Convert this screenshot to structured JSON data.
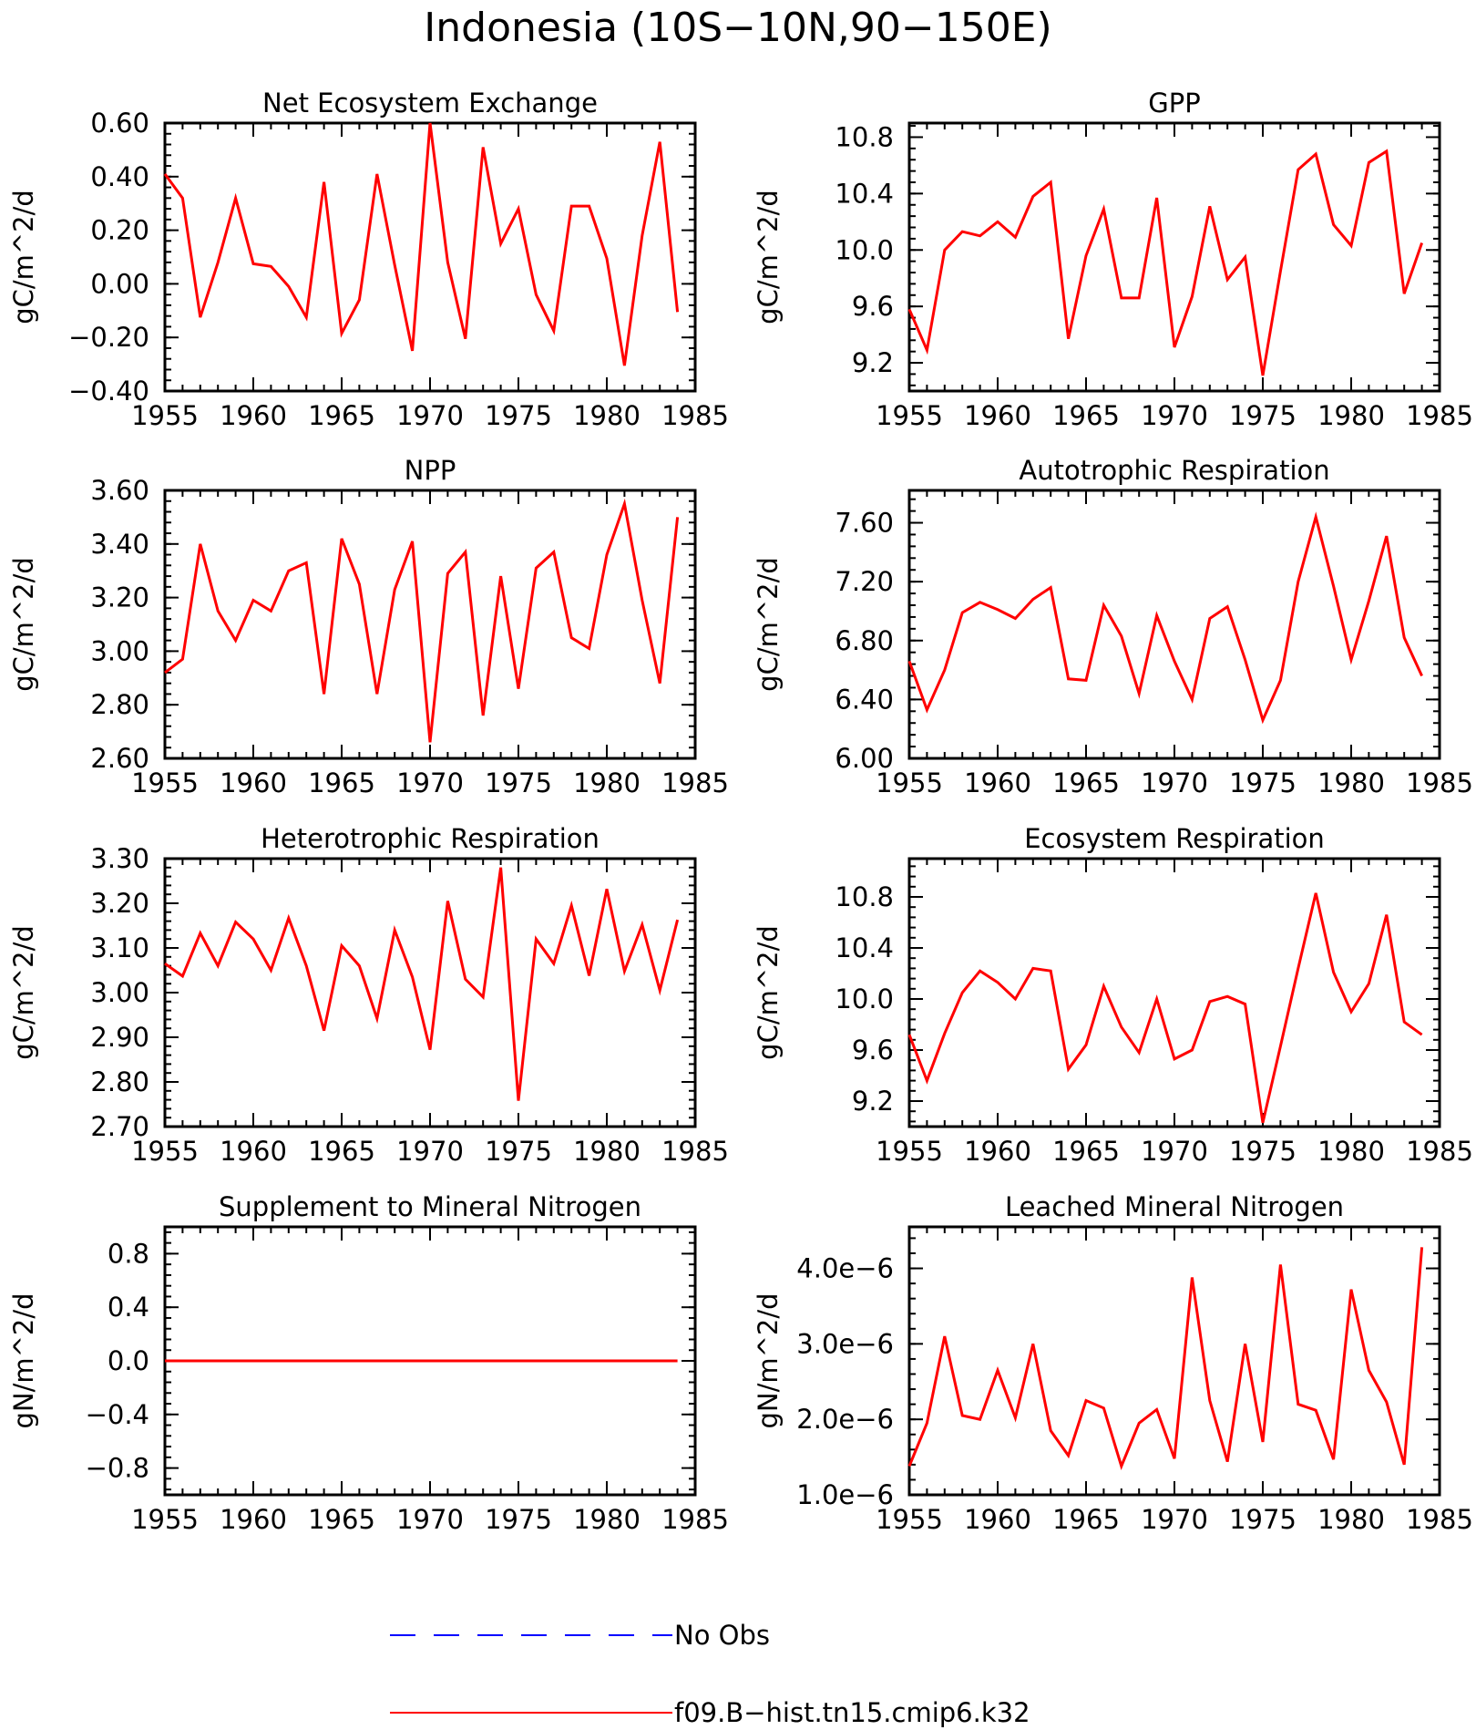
{
  "title": "Indonesia (10S−10N,90−150E)",
  "legend": [
    {
      "label": "No Obs",
      "color": "#0000ff",
      "style": "dashed"
    },
    {
      "label": "f09.B−hist.tn15.cmip6.k32",
      "color": "#ff0000",
      "style": "solid"
    }
  ],
  "chart_data": [
    {
      "type": "line",
      "title": "Net Ecosystem Exchange",
      "ylabel": "gC/m^2/d",
      "xlim": [
        1955,
        1985
      ],
      "ylim": [
        -0.4,
        0.6
      ],
      "yticks": [
        -0.4,
        -0.2,
        0.0,
        0.2,
        0.4,
        0.6
      ],
      "yticklabels": [
        "−0.40",
        "−0.20",
        "0.00",
        "0.20",
        "0.40",
        "0.60"
      ],
      "xticks": [
        1955,
        1960,
        1965,
        1970,
        1975,
        1980,
        1985
      ],
      "xticklabels": [
        "1955",
        "1960",
        "1965",
        "1970",
        "1975",
        "1980",
        "1985"
      ],
      "series": [
        {
          "color": "#ff0000",
          "x0": 1955,
          "values": [
            0.41,
            0.32,
            -0.125,
            0.08,
            0.32,
            0.075,
            0.065,
            -0.01,
            -0.125,
            0.38,
            -0.185,
            -0.06,
            0.41,
            0.07,
            -0.25,
            0.6,
            0.08,
            -0.205,
            0.51,
            0.15,
            0.28,
            -0.04,
            -0.175,
            0.29,
            0.29,
            0.095,
            -0.305,
            0.18,
            0.53,
            -0.105
          ]
        }
      ]
    },
    {
      "type": "line",
      "title": "GPP",
      "ylabel": "gC/m^2/d",
      "xlim": [
        1955,
        1985
      ],
      "ylim": [
        9.0,
        10.9
      ],
      "yticks": [
        9.2,
        9.6,
        10.0,
        10.4,
        10.8
      ],
      "yticklabels": [
        "9.2",
        "9.6",
        "10.0",
        "10.4",
        "10.8"
      ],
      "xticks": [
        1955,
        1960,
        1965,
        1970,
        1975,
        1980,
        1985
      ],
      "xticklabels": [
        "1955",
        "1960",
        "1965",
        "1970",
        "1975",
        "1980",
        "1985"
      ],
      "series": [
        {
          "color": "#ff0000",
          "x0": 1955,
          "values": [
            9.58,
            9.29,
            10.0,
            10.13,
            10.1,
            10.2,
            10.09,
            10.38,
            10.48,
            9.37,
            9.96,
            10.29,
            9.66,
            9.66,
            10.37,
            9.31,
            9.67,
            10.31,
            9.79,
            9.95,
            9.11,
            9.85,
            10.57,
            10.68,
            10.18,
            10.03,
            10.62,
            10.7,
            9.69,
            10.05
          ]
        }
      ]
    },
    {
      "type": "line",
      "title": "NPP",
      "ylabel": "gC/m^2/d",
      "xlim": [
        1955,
        1985
      ],
      "ylim": [
        2.6,
        3.6
      ],
      "yticks": [
        2.6,
        2.8,
        3.0,
        3.2,
        3.4,
        3.6
      ],
      "yticklabels": [
        "2.60",
        "2.80",
        "3.00",
        "3.20",
        "3.40",
        "3.60"
      ],
      "xticks": [
        1955,
        1960,
        1965,
        1970,
        1975,
        1980,
        1985
      ],
      "xticklabels": [
        "1955",
        "1960",
        "1965",
        "1970",
        "1975",
        "1980",
        "1985"
      ],
      "series": [
        {
          "color": "#ff0000",
          "x0": 1955,
          "values": [
            2.92,
            2.97,
            3.4,
            3.15,
            3.04,
            3.19,
            3.15,
            3.3,
            3.33,
            2.84,
            3.42,
            3.25,
            2.84,
            3.23,
            3.41,
            2.66,
            3.29,
            3.37,
            2.76,
            3.28,
            2.86,
            3.31,
            3.37,
            3.05,
            3.01,
            3.36,
            3.55,
            3.19,
            2.88,
            3.5
          ]
        }
      ]
    },
    {
      "type": "line",
      "title": "Autotrophic Respiration",
      "ylabel": "gC/m^2/d",
      "xlim": [
        1955,
        1985
      ],
      "ylim": [
        6.0,
        7.82
      ],
      "yticks": [
        6.0,
        6.4,
        6.8,
        7.2,
        7.6
      ],
      "yticklabels": [
        "6.00",
        "6.40",
        "6.80",
        "7.20",
        "7.60"
      ],
      "xticks": [
        1955,
        1960,
        1965,
        1970,
        1975,
        1980,
        1985
      ],
      "xticklabels": [
        "1955",
        "1960",
        "1965",
        "1970",
        "1975",
        "1980",
        "1985"
      ],
      "series": [
        {
          "color": "#ff0000",
          "x0": 1955,
          "values": [
            6.66,
            6.33,
            6.6,
            6.99,
            7.06,
            7.01,
            6.95,
            7.08,
            7.16,
            6.54,
            6.53,
            7.04,
            6.83,
            6.44,
            6.97,
            6.66,
            6.4,
            6.95,
            7.03,
            6.67,
            6.26,
            6.53,
            7.2,
            7.64,
            7.17,
            6.67,
            7.07,
            7.51,
            6.82,
            6.56
          ]
        }
      ]
    },
    {
      "type": "line",
      "title": "Heterotrophic Respiration",
      "ylabel": "gC/m^2/d",
      "xlim": [
        1955,
        1985
      ],
      "ylim": [
        2.7,
        3.3
      ],
      "yticks": [
        2.7,
        2.8,
        2.9,
        3.0,
        3.1,
        3.2,
        3.3
      ],
      "yticklabels": [
        "2.70",
        "2.80",
        "2.90",
        "3.00",
        "3.10",
        "3.20",
        "3.30"
      ],
      "xticks": [
        1955,
        1960,
        1965,
        1970,
        1975,
        1980,
        1985
      ],
      "xticklabels": [
        "1955",
        "1960",
        "1965",
        "1970",
        "1975",
        "1980",
        "1985"
      ],
      "series": [
        {
          "color": "#ff0000",
          "x0": 1955,
          "values": [
            3.065,
            3.037,
            3.133,
            3.06,
            3.158,
            3.12,
            3.05,
            3.167,
            3.06,
            2.915,
            3.105,
            3.06,
            2.942,
            3.14,
            3.035,
            2.872,
            3.205,
            3.03,
            2.99,
            3.28,
            2.758,
            3.12,
            3.065,
            3.195,
            3.038,
            3.232,
            3.048,
            3.152,
            3.005,
            3.163
          ]
        }
      ]
    },
    {
      "type": "line",
      "title": "Ecosystem Respiration",
      "ylabel": "gC/m^2/d",
      "xlim": [
        1955,
        1985
      ],
      "ylim": [
        9.0,
        11.1
      ],
      "yticks": [
        9.2,
        9.6,
        10.0,
        10.4,
        10.8
      ],
      "yticklabels": [
        "9.2",
        "9.6",
        "10.0",
        "10.4",
        "10.8"
      ],
      "xticks": [
        1955,
        1960,
        1965,
        1970,
        1975,
        1980,
        1985
      ],
      "xticklabels": [
        "1955",
        "1960",
        "1965",
        "1970",
        "1975",
        "1980",
        "1985"
      ],
      "series": [
        {
          "color": "#ff0000",
          "x0": 1955,
          "values": [
            9.72,
            9.36,
            9.73,
            10.05,
            10.22,
            10.13,
            10.0,
            10.24,
            10.22,
            9.45,
            9.64,
            10.1,
            9.78,
            9.58,
            10.0,
            9.53,
            9.6,
            9.98,
            10.02,
            9.96,
            9.03,
            9.63,
            10.24,
            10.83,
            10.21,
            9.9,
            10.12,
            10.66,
            9.82,
            9.72
          ]
        }
      ]
    },
    {
      "type": "line",
      "title": "Supplement to Mineral Nitrogen",
      "ylabel": "gN/m^2/d",
      "xlim": [
        1955,
        1985
      ],
      "ylim": [
        -1.0,
        1.0
      ],
      "yticks": [
        -0.8,
        -0.4,
        0.0,
        0.4,
        0.8
      ],
      "yticklabels": [
        "−0.8",
        "−0.4",
        "0.0",
        "0.4",
        "0.8"
      ],
      "xticks": [
        1955,
        1960,
        1965,
        1970,
        1975,
        1980,
        1985
      ],
      "xticklabels": [
        "1955",
        "1960",
        "1965",
        "1970",
        "1975",
        "1980",
        "1985"
      ],
      "series": [
        {
          "color": "#ff0000",
          "x0": 1955,
          "values": [
            0,
            0,
            0,
            0,
            0,
            0,
            0,
            0,
            0,
            0,
            0,
            0,
            0,
            0,
            0,
            0,
            0,
            0,
            0,
            0,
            0,
            0,
            0,
            0,
            0,
            0,
            0,
            0,
            0,
            0
          ]
        }
      ]
    },
    {
      "type": "line",
      "title": "Leached Mineral Nitrogen",
      "ylabel": "gN/m^2/d",
      "xlim": [
        1955,
        1985
      ],
      "ylim": [
        1e-06,
        4.55e-06
      ],
      "yticks": [
        1e-06,
        2e-06,
        3e-06,
        4e-06
      ],
      "yticklabels": [
        "1.0e−6",
        "2.0e−6",
        "3.0e−6",
        "4.0e−6"
      ],
      "xticks": [
        1955,
        1960,
        1965,
        1970,
        1975,
        1980,
        1985
      ],
      "xticklabels": [
        "1955",
        "1960",
        "1965",
        "1970",
        "1975",
        "1980",
        "1985"
      ],
      "series": [
        {
          "color": "#ff0000",
          "x0": 1955,
          "values": [
            1.38e-06,
            1.95e-06,
            3.1e-06,
            2.05e-06,
            2e-06,
            2.65e-06,
            2.02e-06,
            3e-06,
            1.85e-06,
            1.52e-06,
            2.25e-06,
            2.15e-06,
            1.38e-06,
            1.95e-06,
            2.13e-06,
            1.48e-06,
            3.88e-06,
            2.25e-06,
            1.44e-06,
            3e-06,
            1.7e-06,
            4.05e-06,
            2.2e-06,
            2.12e-06,
            1.47e-06,
            3.72e-06,
            2.65e-06,
            2.23e-06,
            1.4e-06,
            4.28e-06
          ]
        }
      ]
    }
  ]
}
